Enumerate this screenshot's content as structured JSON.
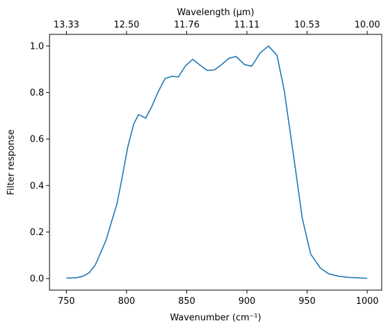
{
  "chart_data": {
    "type": "line",
    "xlabel": "Wavenumber (cm⁻¹)",
    "ylabel": "Filter response",
    "top_xlabel": "Wavelength (μm)",
    "xlim": [
      736,
      1012
    ],
    "ylim": [
      -0.05,
      1.05
    ],
    "x_ticks": [
      750,
      800,
      850,
      900,
      950,
      1000
    ],
    "x_tick_labels": [
      "750",
      "800",
      "850",
      "900",
      "950",
      "1000"
    ],
    "y_ticks": [
      0.0,
      0.2,
      0.4,
      0.6,
      0.8,
      1.0
    ],
    "y_tick_labels": [
      "0.0",
      "0.2",
      "0.4",
      "0.6",
      "0.8",
      "1.0"
    ],
    "top_ticks": [
      750,
      800,
      850,
      900,
      950,
      1000
    ],
    "top_tick_labels": [
      "13.33",
      "12.50",
      "11.76",
      "11.11",
      "10.53",
      "10.00"
    ],
    "grid": false,
    "colors": {
      "series": "#1f77b4"
    },
    "series": [
      {
        "x": [
          750,
          758,
          764,
          769,
          774,
          778,
          783,
          787,
          792,
          796,
          801,
          806,
          810,
          816,
          821,
          826,
          832,
          838,
          843,
          849,
          855,
          861,
          867,
          873,
          879,
          885,
          891,
          898,
          904,
          911,
          918,
          925,
          931,
          939,
          946,
          953,
          961,
          968,
          976,
          984,
          992,
          1000
        ],
        "y": [
          0.002,
          0.003,
          0.01,
          0.025,
          0.058,
          0.105,
          0.165,
          0.235,
          0.32,
          0.425,
          0.565,
          0.665,
          0.705,
          0.69,
          0.74,
          0.8,
          0.86,
          0.87,
          0.867,
          0.915,
          0.943,
          0.918,
          0.895,
          0.897,
          0.92,
          0.947,
          0.955,
          0.92,
          0.913,
          0.97,
          1.0,
          0.96,
          0.81,
          0.52,
          0.26,
          0.105,
          0.045,
          0.02,
          0.01,
          0.005,
          0.003,
          0.001
        ]
      }
    ]
  }
}
